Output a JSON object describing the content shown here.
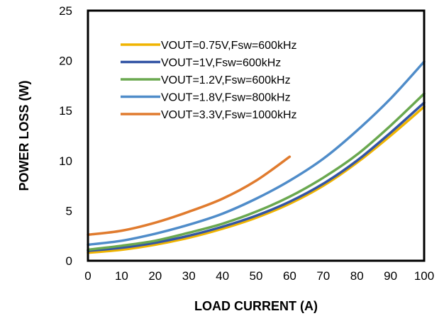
{
  "chart_data": {
    "type": "line",
    "xlabel": "LOAD CURRENT (A)",
    "ylabel": "POWER LOSS (W)",
    "xlim": [
      0,
      100
    ],
    "ylim": [
      0,
      25
    ],
    "x_ticks": [
      "0",
      "10",
      "20",
      "30",
      "40",
      "50",
      "60",
      "70",
      "80",
      "90",
      "100"
    ],
    "y_ticks": [
      "0",
      "5",
      "10",
      "15",
      "20",
      "25"
    ],
    "grid": false,
    "legend_position": "top-left",
    "series": [
      {
        "name": "VOUT=0.75V,Fsw=600kHz",
        "color": "#F0B400",
        "x": [
          0,
          10,
          20,
          30,
          40,
          50,
          60,
          70,
          80,
          90,
          100
        ],
        "y": [
          0.8,
          1.1,
          1.6,
          2.3,
          3.2,
          4.3,
          5.7,
          7.5,
          9.8,
          12.5,
          15.4
        ]
      },
      {
        "name": "VOUT=1V,Fsw=600kHz",
        "color": "#3355A5",
        "x": [
          0,
          10,
          20,
          30,
          40,
          50,
          60,
          70,
          80,
          90,
          100
        ],
        "y": [
          1.0,
          1.3,
          1.8,
          2.5,
          3.4,
          4.5,
          5.9,
          7.7,
          10.0,
          12.8,
          15.8
        ]
      },
      {
        "name": "VOUT=1.2V,Fsw=600kHz",
        "color": "#6AA84F",
        "x": [
          0,
          10,
          20,
          30,
          40,
          50,
          60,
          70,
          80,
          90,
          100
        ],
        "y": [
          1.1,
          1.5,
          2.0,
          2.8,
          3.7,
          4.9,
          6.4,
          8.3,
          10.6,
          13.5,
          16.7
        ]
      },
      {
        "name": "VOUT=1.8V,Fsw=800kHz",
        "color": "#4F8CC9",
        "x": [
          0,
          10,
          20,
          30,
          40,
          50,
          60,
          70,
          80,
          90,
          100
        ],
        "y": [
          1.6,
          2.0,
          2.7,
          3.6,
          4.7,
          6.2,
          8.0,
          10.2,
          13.0,
          16.2,
          19.9
        ]
      },
      {
        "name": "VOUT=3.3V,Fsw=1000kHz",
        "color": "#E07B2E",
        "x": [
          0,
          10,
          20,
          30,
          40,
          50,
          60
        ],
        "y": [
          2.6,
          3.0,
          3.8,
          4.9,
          6.2,
          8.0,
          10.4
        ]
      }
    ]
  }
}
